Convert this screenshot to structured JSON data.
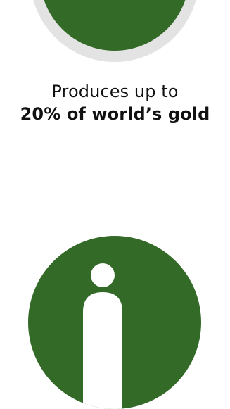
{
  "caption": {
    "line1": "Produces up to",
    "line2": "20% of world’s gold"
  },
  "colors": {
    "circle_fill": "#336a28",
    "ring": "#e3e3e3",
    "text": "#111111",
    "icon": "#ffffff"
  },
  "icons": {
    "top": "circle-badge",
    "bottom": "person-icon"
  }
}
